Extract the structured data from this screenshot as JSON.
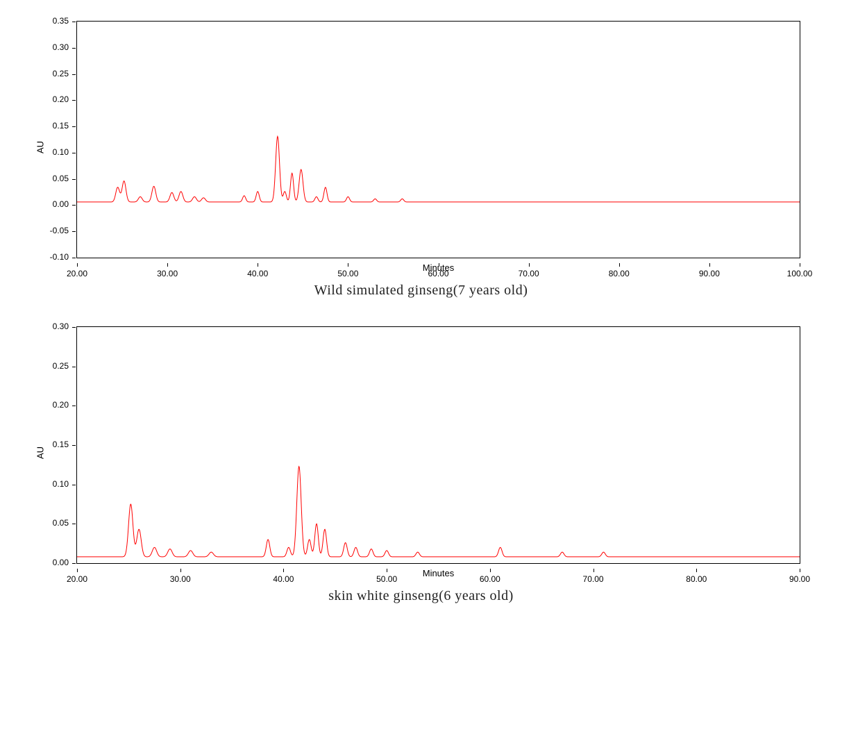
{
  "panel1": {
    "type": "line",
    "caption": "Wild simulated ginseng(7 years old)",
    "ylabel": "AU",
    "xlabel": "Minutes",
    "xlim": [
      20,
      100
    ],
    "ylim": [
      -0.1,
      0.35
    ],
    "xticks": [
      20.0,
      30.0,
      40.0,
      50.0,
      60.0,
      70.0,
      80.0,
      90.0,
      100.0
    ],
    "yticks": [
      -0.1,
      -0.05,
      0.0,
      0.05,
      0.1,
      0.15,
      0.2,
      0.25,
      0.3,
      0.35
    ],
    "line_color": "#ff0000",
    "line_width": 1.0,
    "background_color": "#ffffff",
    "border_color": "#000000",
    "tick_fontsize": 12,
    "label_fontsize": 13,
    "caption_fontsize": 20,
    "baseline": 0.006,
    "peaks": [
      {
        "x": 24.5,
        "h": 0.028,
        "w": 0.5
      },
      {
        "x": 25.2,
        "h": 0.04,
        "w": 0.5
      },
      {
        "x": 27.0,
        "h": 0.01,
        "w": 0.5
      },
      {
        "x": 28.5,
        "h": 0.03,
        "w": 0.5
      },
      {
        "x": 30.5,
        "h": 0.018,
        "w": 0.5
      },
      {
        "x": 31.5,
        "h": 0.02,
        "w": 0.5
      },
      {
        "x": 33.0,
        "h": 0.01,
        "w": 0.5
      },
      {
        "x": 34.0,
        "h": 0.008,
        "w": 0.5
      },
      {
        "x": 38.5,
        "h": 0.012,
        "w": 0.4
      },
      {
        "x": 40.0,
        "h": 0.02,
        "w": 0.4
      },
      {
        "x": 42.2,
        "h": 0.125,
        "w": 0.5
      },
      {
        "x": 43.0,
        "h": 0.02,
        "w": 0.4
      },
      {
        "x": 43.8,
        "h": 0.055,
        "w": 0.4
      },
      {
        "x": 44.8,
        "h": 0.062,
        "w": 0.5
      },
      {
        "x": 46.5,
        "h": 0.01,
        "w": 0.4
      },
      {
        "x": 47.5,
        "h": 0.028,
        "w": 0.4
      },
      {
        "x": 50.0,
        "h": 0.01,
        "w": 0.4
      },
      {
        "x": 53.0,
        "h": 0.006,
        "w": 0.4
      },
      {
        "x": 56.0,
        "h": 0.006,
        "w": 0.4
      }
    ]
  },
  "panel2": {
    "type": "line",
    "caption": "skin white ginseng(6 years old)",
    "ylabel": "AU",
    "xlabel": "Minutes",
    "xlim": [
      20,
      90
    ],
    "ylim": [
      0.0,
      0.3
    ],
    "xticks": [
      20.0,
      30.0,
      40.0,
      50.0,
      60.0,
      70.0,
      80.0,
      90.0
    ],
    "yticks": [
      0.0,
      0.05,
      0.1,
      0.15,
      0.2,
      0.25,
      0.3
    ],
    "line_color": "#ff0000",
    "line_width": 1.0,
    "background_color": "#ffffff",
    "border_color": "#000000",
    "tick_fontsize": 12,
    "label_fontsize": 13,
    "caption_fontsize": 20,
    "baseline": 0.008,
    "peaks": [
      {
        "x": 25.2,
        "h": 0.067,
        "w": 0.5
      },
      {
        "x": 26.0,
        "h": 0.035,
        "w": 0.5
      },
      {
        "x": 27.5,
        "h": 0.012,
        "w": 0.5
      },
      {
        "x": 29.0,
        "h": 0.01,
        "w": 0.5
      },
      {
        "x": 31.0,
        "h": 0.008,
        "w": 0.5
      },
      {
        "x": 33.0,
        "h": 0.006,
        "w": 0.5
      },
      {
        "x": 38.5,
        "h": 0.022,
        "w": 0.4
      },
      {
        "x": 40.5,
        "h": 0.012,
        "w": 0.4
      },
      {
        "x": 41.5,
        "h": 0.115,
        "w": 0.5
      },
      {
        "x": 42.5,
        "h": 0.022,
        "w": 0.4
      },
      {
        "x": 43.2,
        "h": 0.042,
        "w": 0.4
      },
      {
        "x": 44.0,
        "h": 0.035,
        "w": 0.4
      },
      {
        "x": 46.0,
        "h": 0.018,
        "w": 0.4
      },
      {
        "x": 47.0,
        "h": 0.012,
        "w": 0.4
      },
      {
        "x": 48.5,
        "h": 0.01,
        "w": 0.4
      },
      {
        "x": 50.0,
        "h": 0.008,
        "w": 0.4
      },
      {
        "x": 53.0,
        "h": 0.006,
        "w": 0.4
      },
      {
        "x": 61.0,
        "h": 0.012,
        "w": 0.4
      },
      {
        "x": 67.0,
        "h": 0.006,
        "w": 0.4
      },
      {
        "x": 71.0,
        "h": 0.006,
        "w": 0.4
      }
    ]
  }
}
